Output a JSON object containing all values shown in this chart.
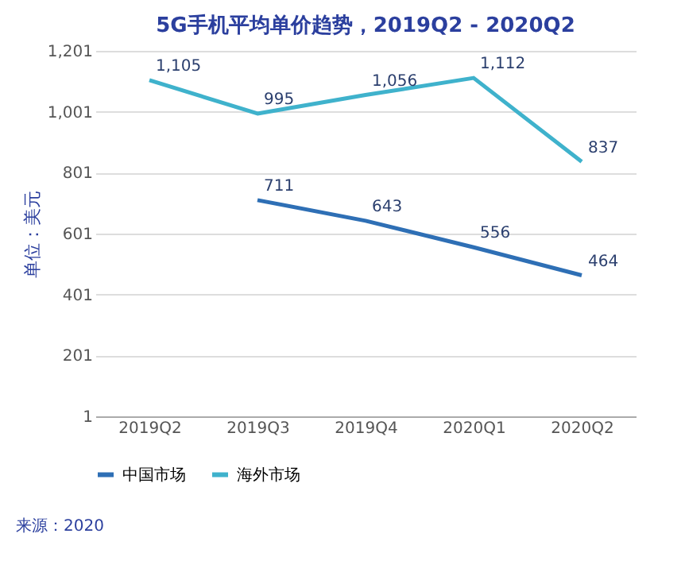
{
  "chart_data": {
    "type": "line",
    "title": "5G手机平均单价趋势，2019Q2 - 2020Q2",
    "ylabel": "单位：美元",
    "categories": [
      "2019Q2",
      "2019Q3",
      "2019Q4",
      "2020Q1",
      "2020Q2"
    ],
    "series": [
      {
        "name": "中国市场",
        "color": "#2e6fb5",
        "values": [
          null,
          711,
          643,
          556,
          464
        ],
        "value_labels": [
          null,
          "711",
          "643",
          "556",
          "464"
        ]
      },
      {
        "name": "海外市场",
        "color": "#3fb2cc",
        "values": [
          1105,
          995,
          1056,
          1112,
          837
        ],
        "value_labels": [
          "1,105",
          "995",
          "1,056",
          "1,112",
          "837"
        ]
      }
    ],
    "ylim": [
      1,
      1201
    ],
    "yticks": [
      1,
      201,
      401,
      601,
      801,
      {
        "value": 1001,
        "label": "1,001"
      },
      {
        "value": 1201,
        "label": "1,201"
      }
    ],
    "grid": "y",
    "legend": "bottom",
    "marker": "none",
    "line_style": "solid",
    "annotations": [
      "来源：2020"
    ]
  }
}
